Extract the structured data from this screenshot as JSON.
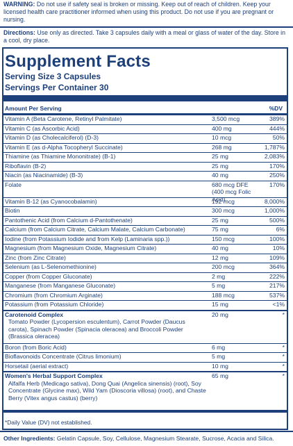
{
  "warning": {
    "label": "WARNING:",
    "text": "Do not use if safety seal is broken or missing. Keep out of reach of children. Keep your licensed health care practitioner informed when using this product. Do not use if you are pregnant or nursing."
  },
  "directions": {
    "label": "Directions:",
    "text": "Use only as directed. Take 3 capsules daily with a meal or glass of water of the day. Store in a cool, dry place."
  },
  "facts": {
    "title": "Supplement Facts",
    "serving_size": "Serving Size 3 Capsules",
    "servings_per_container": "Servings Per Container 30",
    "header_amount": "Amount Per Serving",
    "header_dv": "%DV"
  },
  "rows": [
    {
      "name": "Vitamin A (Beta Carotene, Retinyl Palmitate)",
      "amount": "3,500 mcg",
      "dv": "389%"
    },
    {
      "name": "Vitamin C (as Ascorbic Acid)",
      "amount": "400 mg",
      "dv": "444%"
    },
    {
      "name": "Vitamin D (as Cholecalciferol) (D-3)",
      "amount": "10 mcg",
      "dv": "50%"
    },
    {
      "name": "Vitamin E (as d-Alpha Tocopheryl Succinate)",
      "amount": "268 mg",
      "dv": "1,787%"
    },
    {
      "name": "Thiamine (as Thiamine Mononitrate) (B-1)",
      "amount": "25 mg",
      "dv": "2,083%"
    },
    {
      "name": "Riboflavin (B-2)",
      "amount": "25 mg",
      "dv": "170%"
    },
    {
      "name": "Niacin (as Niacinamide) (B-3)",
      "amount": "40 mg",
      "dv": "250%"
    },
    {
      "name": "Folate",
      "amount": "680 mcg DFE",
      "amount2": "(400 mcg Folic Acid)",
      "dv": "170%"
    },
    {
      "name": "Vitamin B-12 (as Cyanocobalamin)",
      "amount": "192 mcg",
      "dv": "8,000%"
    },
    {
      "name": "Biotin",
      "amount": "300 mcg",
      "dv": "1,000%"
    },
    {
      "name": "Pantothenic Acid (from Calcium d-Pantothenate)",
      "amount": "25 mg",
      "dv": "500%"
    },
    {
      "name": "Calcium (from Calcium Citrate, Calcium Malate, Calcium Carbonate)",
      "amount": "75 mg",
      "dv": "6%"
    },
    {
      "name": "Iodine (from Potassium Iodide and from Kelp (Laminaria spp.))",
      "amount": "150 mcg",
      "dv": "100%"
    },
    {
      "name": "Magnesium (from Magnesium Oxide, Magnesium Citrate)",
      "amount": "40 mg",
      "dv": "10%"
    },
    {
      "name": "Zinc (from Zinc Citrate)",
      "amount": "12 mg",
      "dv": "109%"
    },
    {
      "name": "Selenium (as L-Selenomethionine)",
      "amount": "200 mcg",
      "dv": "364%"
    },
    {
      "name": "Copper (from Copper Gluconate)",
      "amount": "2 mg",
      "dv": "222%"
    },
    {
      "name": "Manganese (from Manganese Gluconate)",
      "amount": "5 mg",
      "dv": "217%"
    },
    {
      "name": "Chromium (from Chromium Arginate)",
      "amount": "188 mcg",
      "dv": "537%"
    },
    {
      "name": "Potassium (from Potassium Chloride)",
      "amount": "15 mg",
      "dv": "<1%"
    },
    {
      "name": "Carotenoid Complex",
      "bold": true,
      "sub": "Tomato Powder (Lycopersion esculentum), Carrot Powder (Daucus carota), Spinach Powder (Spinacia oleracea) and Broccoli Powder (Brassica oleracea)",
      "amount": "20 mg",
      "dv": "*"
    },
    {
      "name": "Boron (from Boric Acid)",
      "amount": "6 mg",
      "dv": "*"
    },
    {
      "name": "Bioflavonoids Concentrate (Citrus limonium)",
      "amount": "5 mg",
      "dv": "*"
    },
    {
      "name": "Horsetail (aerial extract)",
      "amount": "10 mg",
      "dv": "*"
    },
    {
      "name": "Women's Herbal Support Complex",
      "bold": true,
      "sub": "Alfalfa Herb (Medicago sativa), Dong Quai (Angelica sinensis) (root), Soy Concentrate (Glycine max), Wild Yam (Dioscoria villosa) (root), and Chaste Berry (Vitex angus castus) (berry)",
      "amount": "65 mg",
      "dv": "*"
    }
  ],
  "footnote": "*Daily Value (DV) not established.",
  "other_ingredients": {
    "label": "Other Ingredients:",
    "text": "Gelatin Capsule, Soy, Cellulose, Magnesium Stearate, Sucrose, Acacia and Silica."
  }
}
